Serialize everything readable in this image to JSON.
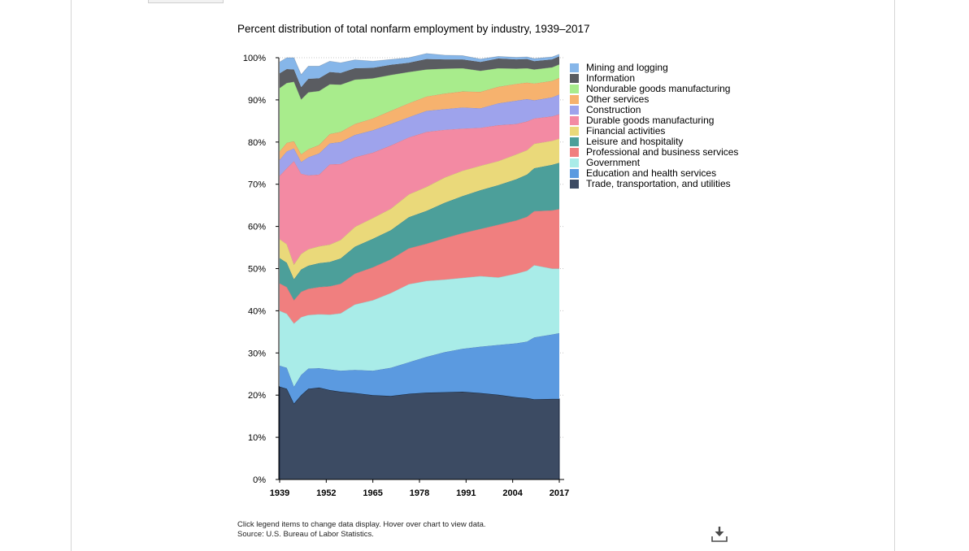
{
  "chart_data": {
    "type": "area",
    "stacked": true,
    "normalized_percent": true,
    "title": "Percent distribution of total nonfarm employment by industry, 1939–2017",
    "xlabel": "",
    "ylabel": "",
    "x_range": [
      1939,
      2017
    ],
    "x_ticks": [
      "1939",
      "1952",
      "1965",
      "1978",
      "1991",
      "2004",
      "2017"
    ],
    "y_ticks": [
      "0%",
      "10%",
      "20%",
      "30%",
      "40%",
      "50%",
      "60%",
      "70%",
      "80%",
      "90%",
      "100%"
    ],
    "ylim": [
      0,
      100
    ],
    "grid": "horizontal dotted",
    "legend_position": "right",
    "x": [
      1939,
      1941,
      1943,
      1945,
      1947,
      1950,
      1953,
      1956,
      1960,
      1965,
      1970,
      1975,
      1980,
      1985,
      1990,
      1995,
      2000,
      2005,
      2008,
      2010,
      2015,
      2017
    ],
    "series": [
      {
        "name": "Trade, transportation, and utilities",
        "color": "#3c4b63",
        "values": [
          22.0,
          21.5,
          18.0,
          20.0,
          21.5,
          21.8,
          21.2,
          20.8,
          20.5,
          20.0,
          19.8,
          20.3,
          20.6,
          20.7,
          20.8,
          20.5,
          20.1,
          19.5,
          19.3,
          19.0,
          19.1,
          19.1
        ]
      },
      {
        "name": "Education and health services",
        "color": "#5b9ae0",
        "values": [
          5.0,
          5.0,
          4.0,
          4.8,
          4.8,
          4.6,
          4.9,
          5.0,
          5.5,
          5.8,
          6.7,
          7.5,
          8.5,
          9.5,
          10.2,
          11.0,
          11.8,
          12.8,
          13.4,
          14.7,
          15.3,
          15.6
        ]
      },
      {
        "name": "Government",
        "color": "#a9ece8",
        "values": [
          13.0,
          12.8,
          15.0,
          13.7,
          12.7,
          12.8,
          13.0,
          13.6,
          15.5,
          16.7,
          17.7,
          18.5,
          18.0,
          17.2,
          16.8,
          16.7,
          16.0,
          16.5,
          16.8,
          17.1,
          15.6,
          15.3
        ]
      },
      {
        "name": "Professional and business services",
        "color": "#f07f7f",
        "values": [
          6.5,
          6.3,
          5.5,
          6.0,
          6.2,
          6.4,
          6.7,
          7.0,
          7.3,
          7.8,
          8.0,
          8.5,
          8.8,
          9.8,
          10.6,
          11.2,
          12.5,
          12.6,
          12.8,
          12.8,
          13.8,
          14.1
        ]
      },
      {
        "name": "Leisure and hospitality",
        "color": "#4c9f9a",
        "values": [
          6.0,
          5.8,
          5.0,
          5.3,
          5.5,
          5.7,
          5.8,
          6.0,
          6.4,
          6.8,
          6.9,
          7.4,
          7.8,
          8.4,
          8.8,
          9.2,
          9.4,
          9.8,
          10.0,
          10.2,
          10.8,
          11.0
        ]
      },
      {
        "name": "Financial activities",
        "color": "#ead97a",
        "values": [
          4.5,
          4.4,
          3.5,
          3.7,
          3.9,
          4.0,
          4.1,
          4.4,
          4.7,
          4.9,
          5.1,
          5.4,
          5.7,
          6.0,
          6.0,
          5.8,
          5.7,
          5.9,
          5.8,
          5.8,
          5.7,
          5.7
        ]
      },
      {
        "name": "Durable goods manufacturing",
        "color": "#f38aa3",
        "values": [
          15.0,
          18.0,
          24.5,
          19.0,
          17.5,
          17.0,
          19.0,
          18.0,
          16.5,
          15.5,
          15.0,
          13.5,
          13.0,
          11.3,
          10.0,
          9.0,
          8.5,
          7.2,
          6.8,
          6.0,
          5.8,
          5.8
        ]
      },
      {
        "name": "Construction",
        "color": "#9ea3ec",
        "values": [
          3.8,
          4.0,
          3.0,
          2.8,
          4.3,
          5.0,
          5.0,
          5.2,
          5.3,
          5.3,
          5.1,
          4.8,
          5.0,
          4.9,
          5.0,
          4.6,
          5.2,
          5.5,
          5.3,
          4.3,
          4.5,
          4.7
        ]
      },
      {
        "name": "Other services",
        "color": "#f6b26e",
        "values": [
          2.0,
          2.0,
          1.7,
          1.8,
          1.9,
          2.0,
          2.2,
          2.4,
          2.6,
          2.8,
          3.1,
          3.3,
          3.4,
          3.7,
          3.8,
          3.9,
          3.9,
          4.0,
          3.9,
          4.0,
          3.9,
          3.9
        ]
      },
      {
        "name": "Nondurable goods manufacturing",
        "color": "#a8ec8c",
        "values": [
          15.0,
          14.2,
          14.1,
          13.0,
          13.5,
          12.8,
          11.8,
          11.2,
          10.5,
          9.5,
          8.5,
          7.4,
          6.4,
          5.9,
          5.5,
          5.0,
          4.4,
          3.6,
          3.4,
          3.3,
          3.2,
          3.2
        ]
      },
      {
        "name": "Information",
        "color": "#5a5c61",
        "values": [
          3.5,
          3.3,
          2.9,
          2.9,
          3.2,
          3.0,
          2.9,
          2.8,
          2.7,
          2.5,
          2.4,
          2.2,
          2.5,
          2.2,
          2.1,
          2.1,
          2.3,
          2.2,
          2.2,
          2.0,
          1.9,
          1.9
        ]
      },
      {
        "name": "Mining and logging",
        "color": "#86b6e9",
        "values": [
          2.7,
          2.7,
          2.8,
          3.0,
          3.0,
          2.9,
          2.6,
          2.4,
          2.0,
          1.6,
          1.3,
          1.2,
          1.3,
          1.0,
          0.9,
          0.7,
          0.5,
          0.5,
          0.5,
          0.6,
          0.6,
          0.5
        ]
      }
    ]
  },
  "legend_order": [
    "Mining and logging",
    "Information",
    "Nondurable goods manufacturing",
    "Other services",
    "Construction",
    "Durable goods manufacturing",
    "Financial activities",
    "Leisure and hospitality",
    "Professional and business services",
    "Government",
    "Education and health services",
    "Trade, transportation, and utilities"
  ],
  "footnote": {
    "line1": "Click legend items to change data display. Hover over chart to view data.",
    "line2": "Source: U.S. Bureau of Labor Statistics."
  },
  "download": {
    "icon": "download-icon"
  }
}
